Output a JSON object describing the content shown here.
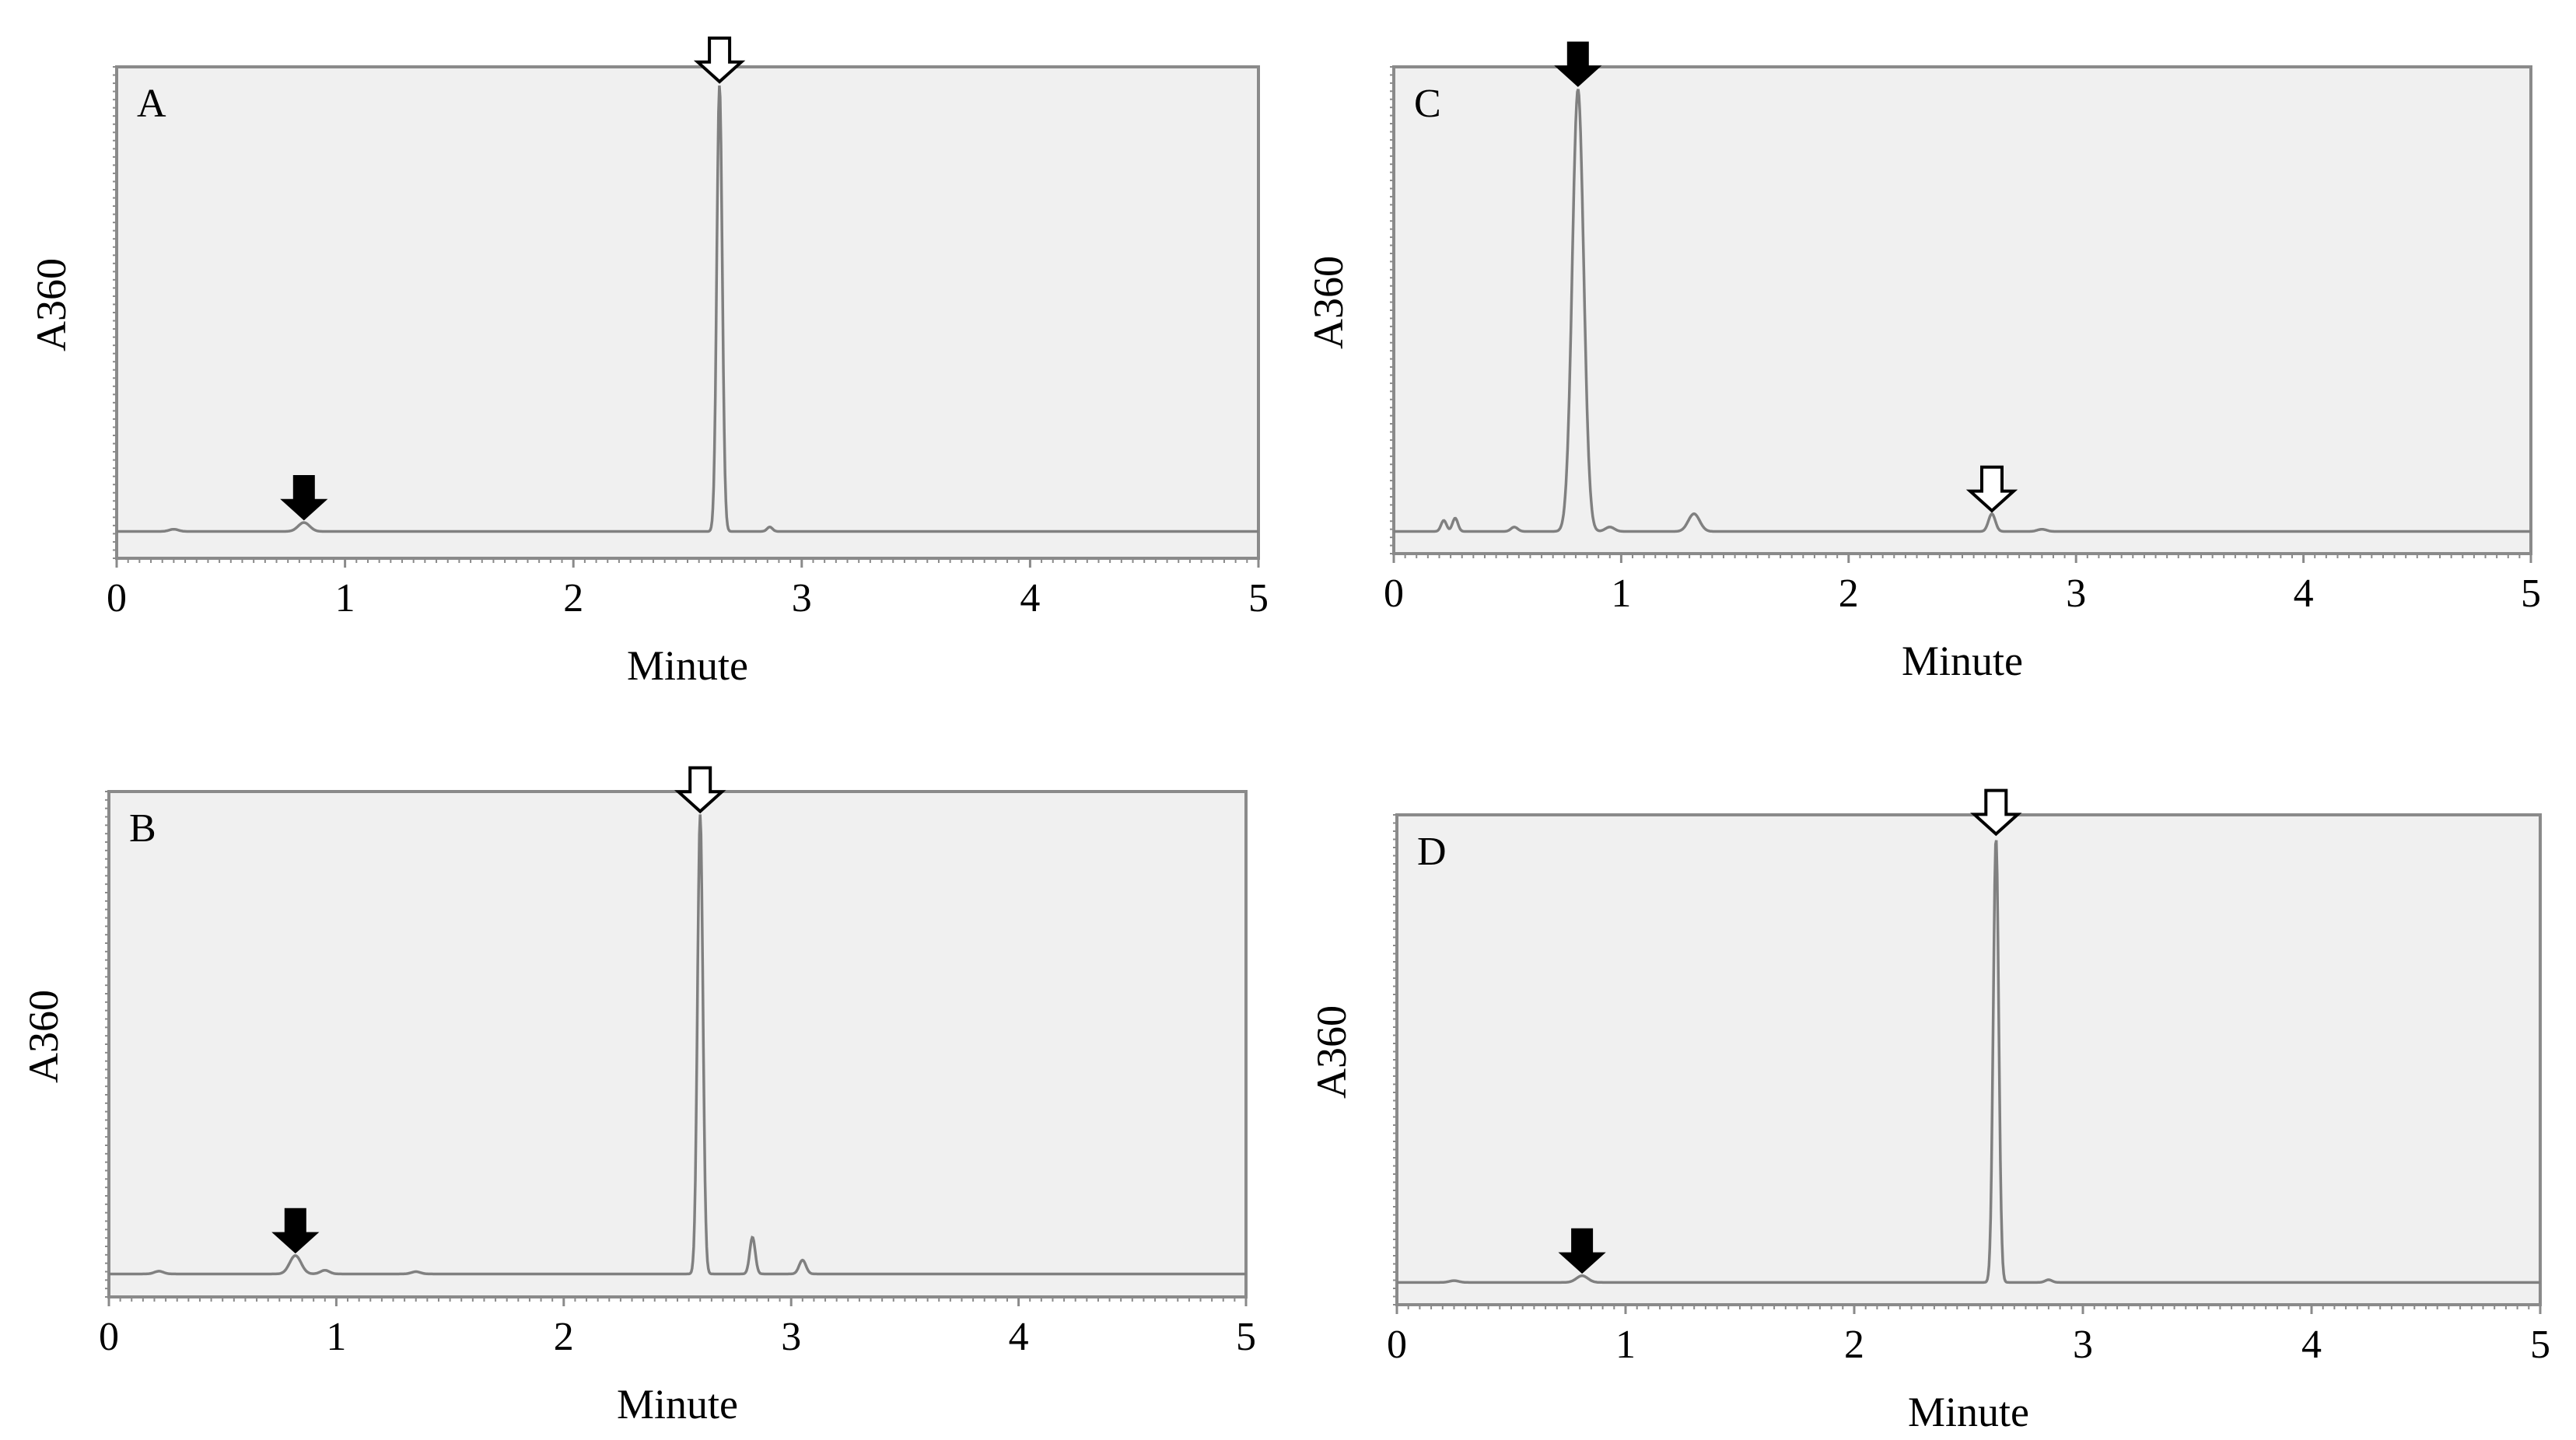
{
  "colors": {
    "plot_bg": "#f0f0f0",
    "frame": "#8a8a8a",
    "trace": "#808080",
    "filled_arrow": "#000000",
    "open_arrow_fill": "#ffffff",
    "open_arrow_stroke": "#000000"
  },
  "chart_data": [
    {
      "type": "line",
      "panel": "A",
      "xlabel": "Minute",
      "ylabel": "A360",
      "xlim": [
        0,
        5
      ],
      "x_ticks": [
        "0",
        "1",
        "2",
        "3",
        "4",
        "5"
      ],
      "ylim": [
        0,
        1.1
      ],
      "baseline": 0.06,
      "peaks": [
        {
          "x": 0.25,
          "height": 0.005,
          "width": 0.02
        },
        {
          "x": 0.82,
          "height": 0.02,
          "width": 0.025
        },
        {
          "x": 2.64,
          "height": 1.0,
          "width": 0.012
        },
        {
          "x": 2.86,
          "height": 0.01,
          "width": 0.012
        }
      ],
      "markers": [
        {
          "kind": "filled-arrow",
          "x": 0.82
        },
        {
          "kind": "open-arrow",
          "x": 2.64
        }
      ]
    },
    {
      "type": "line",
      "panel": "B",
      "xlabel": "Minute",
      "ylabel": "A360",
      "xlim": [
        0,
        5
      ],
      "x_ticks": [
        "0",
        "1",
        "2",
        "3",
        "4",
        "5"
      ],
      "ylim": [
        0,
        1.1
      ],
      "baseline": 0.05,
      "peaks": [
        {
          "x": 0.22,
          "height": 0.006,
          "width": 0.02
        },
        {
          "x": 0.82,
          "height": 0.04,
          "width": 0.025
        },
        {
          "x": 0.95,
          "height": 0.008,
          "width": 0.02
        },
        {
          "x": 1.35,
          "height": 0.005,
          "width": 0.02
        },
        {
          "x": 2.6,
          "height": 1.0,
          "width": 0.012
        },
        {
          "x": 2.83,
          "height": 0.08,
          "width": 0.012
        },
        {
          "x": 3.05,
          "height": 0.03,
          "width": 0.015
        }
      ],
      "markers": [
        {
          "kind": "filled-arrow",
          "x": 0.82
        },
        {
          "kind": "open-arrow",
          "x": 2.6
        }
      ]
    },
    {
      "type": "line",
      "panel": "C",
      "xlabel": "Minute",
      "ylabel": "A360",
      "xlim": [
        0,
        5
      ],
      "x_ticks": [
        "0",
        "1",
        "2",
        "3",
        "4",
        "5"
      ],
      "ylim": [
        0,
        1.1
      ],
      "baseline": 0.05,
      "peaks": [
        {
          "x": 0.22,
          "height": 0.025,
          "width": 0.012
        },
        {
          "x": 0.27,
          "height": 0.03,
          "width": 0.012
        },
        {
          "x": 0.53,
          "height": 0.01,
          "width": 0.015
        },
        {
          "x": 0.81,
          "height": 1.0,
          "width": 0.025
        },
        {
          "x": 0.95,
          "height": 0.01,
          "width": 0.02
        },
        {
          "x": 1.32,
          "height": 0.04,
          "width": 0.025
        },
        {
          "x": 2.63,
          "height": 0.04,
          "width": 0.015
        },
        {
          "x": 2.85,
          "height": 0.005,
          "width": 0.02
        }
      ],
      "markers": [
        {
          "kind": "filled-arrow",
          "x": 0.81
        },
        {
          "kind": "open-arrow",
          "x": 2.63
        }
      ]
    },
    {
      "type": "line",
      "panel": "D",
      "xlabel": "Minute",
      "ylabel": "A360",
      "xlim": [
        0,
        5
      ],
      "x_ticks": [
        "0",
        "1",
        "2",
        "3",
        "4",
        "5"
      ],
      "ylim": [
        0,
        1.1
      ],
      "baseline": 0.05,
      "peaks": [
        {
          "x": 0.25,
          "height": 0.004,
          "width": 0.02
        },
        {
          "x": 0.81,
          "height": 0.015,
          "width": 0.025
        },
        {
          "x": 2.62,
          "height": 1.0,
          "width": 0.012
        },
        {
          "x": 2.85,
          "height": 0.006,
          "width": 0.015
        }
      ],
      "markers": [
        {
          "kind": "filled-arrow",
          "x": 0.81
        },
        {
          "kind": "open-arrow",
          "x": 2.62
        }
      ]
    }
  ]
}
